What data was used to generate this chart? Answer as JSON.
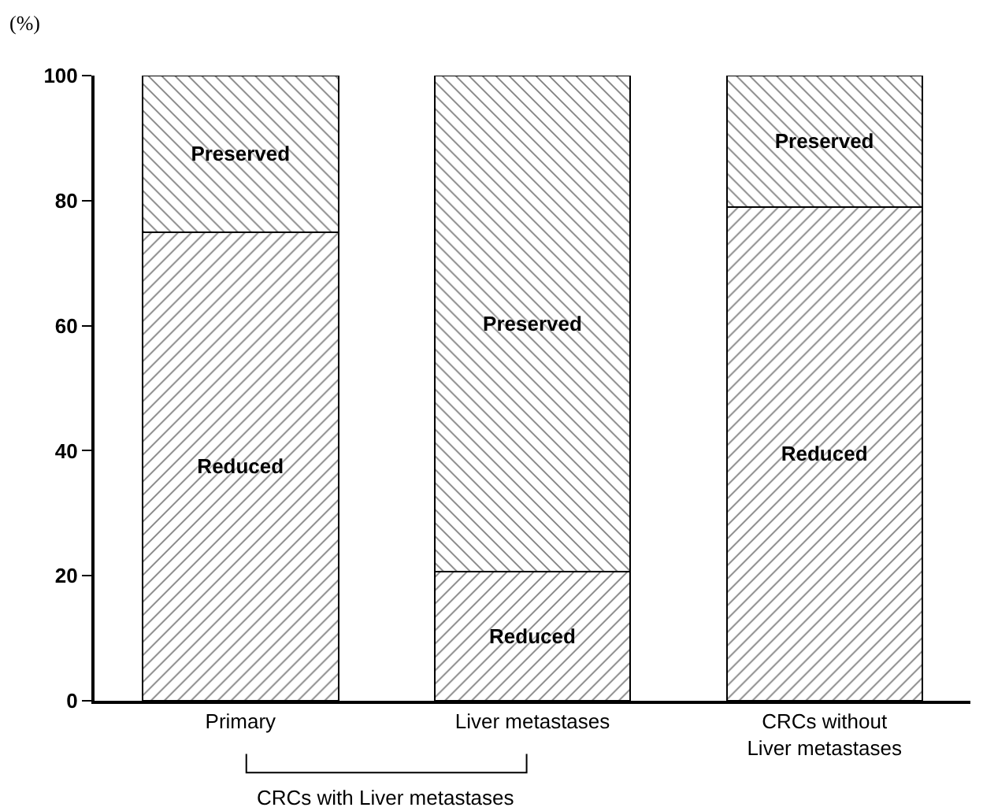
{
  "chart_data": {
    "type": "bar",
    "stacked": true,
    "ylabel": "(%)",
    "categories": [
      "Primary",
      "Liver metastases",
      "CRCs without\nLiver metastases"
    ],
    "series": [
      {
        "name": "Reduced",
        "color": "#000000",
        "values": [
          75,
          20.6,
          79
        ]
      },
      {
        "name": "Preserved",
        "color": "#000000",
        "values": [
          25,
          79.4,
          21
        ]
      }
    ],
    "ylim": [
      0,
      100
    ],
    "yticks": [
      0,
      20,
      40,
      60,
      80,
      100
    ],
    "annotations": [
      "CRCs with Liver metastases"
    ]
  }
}
